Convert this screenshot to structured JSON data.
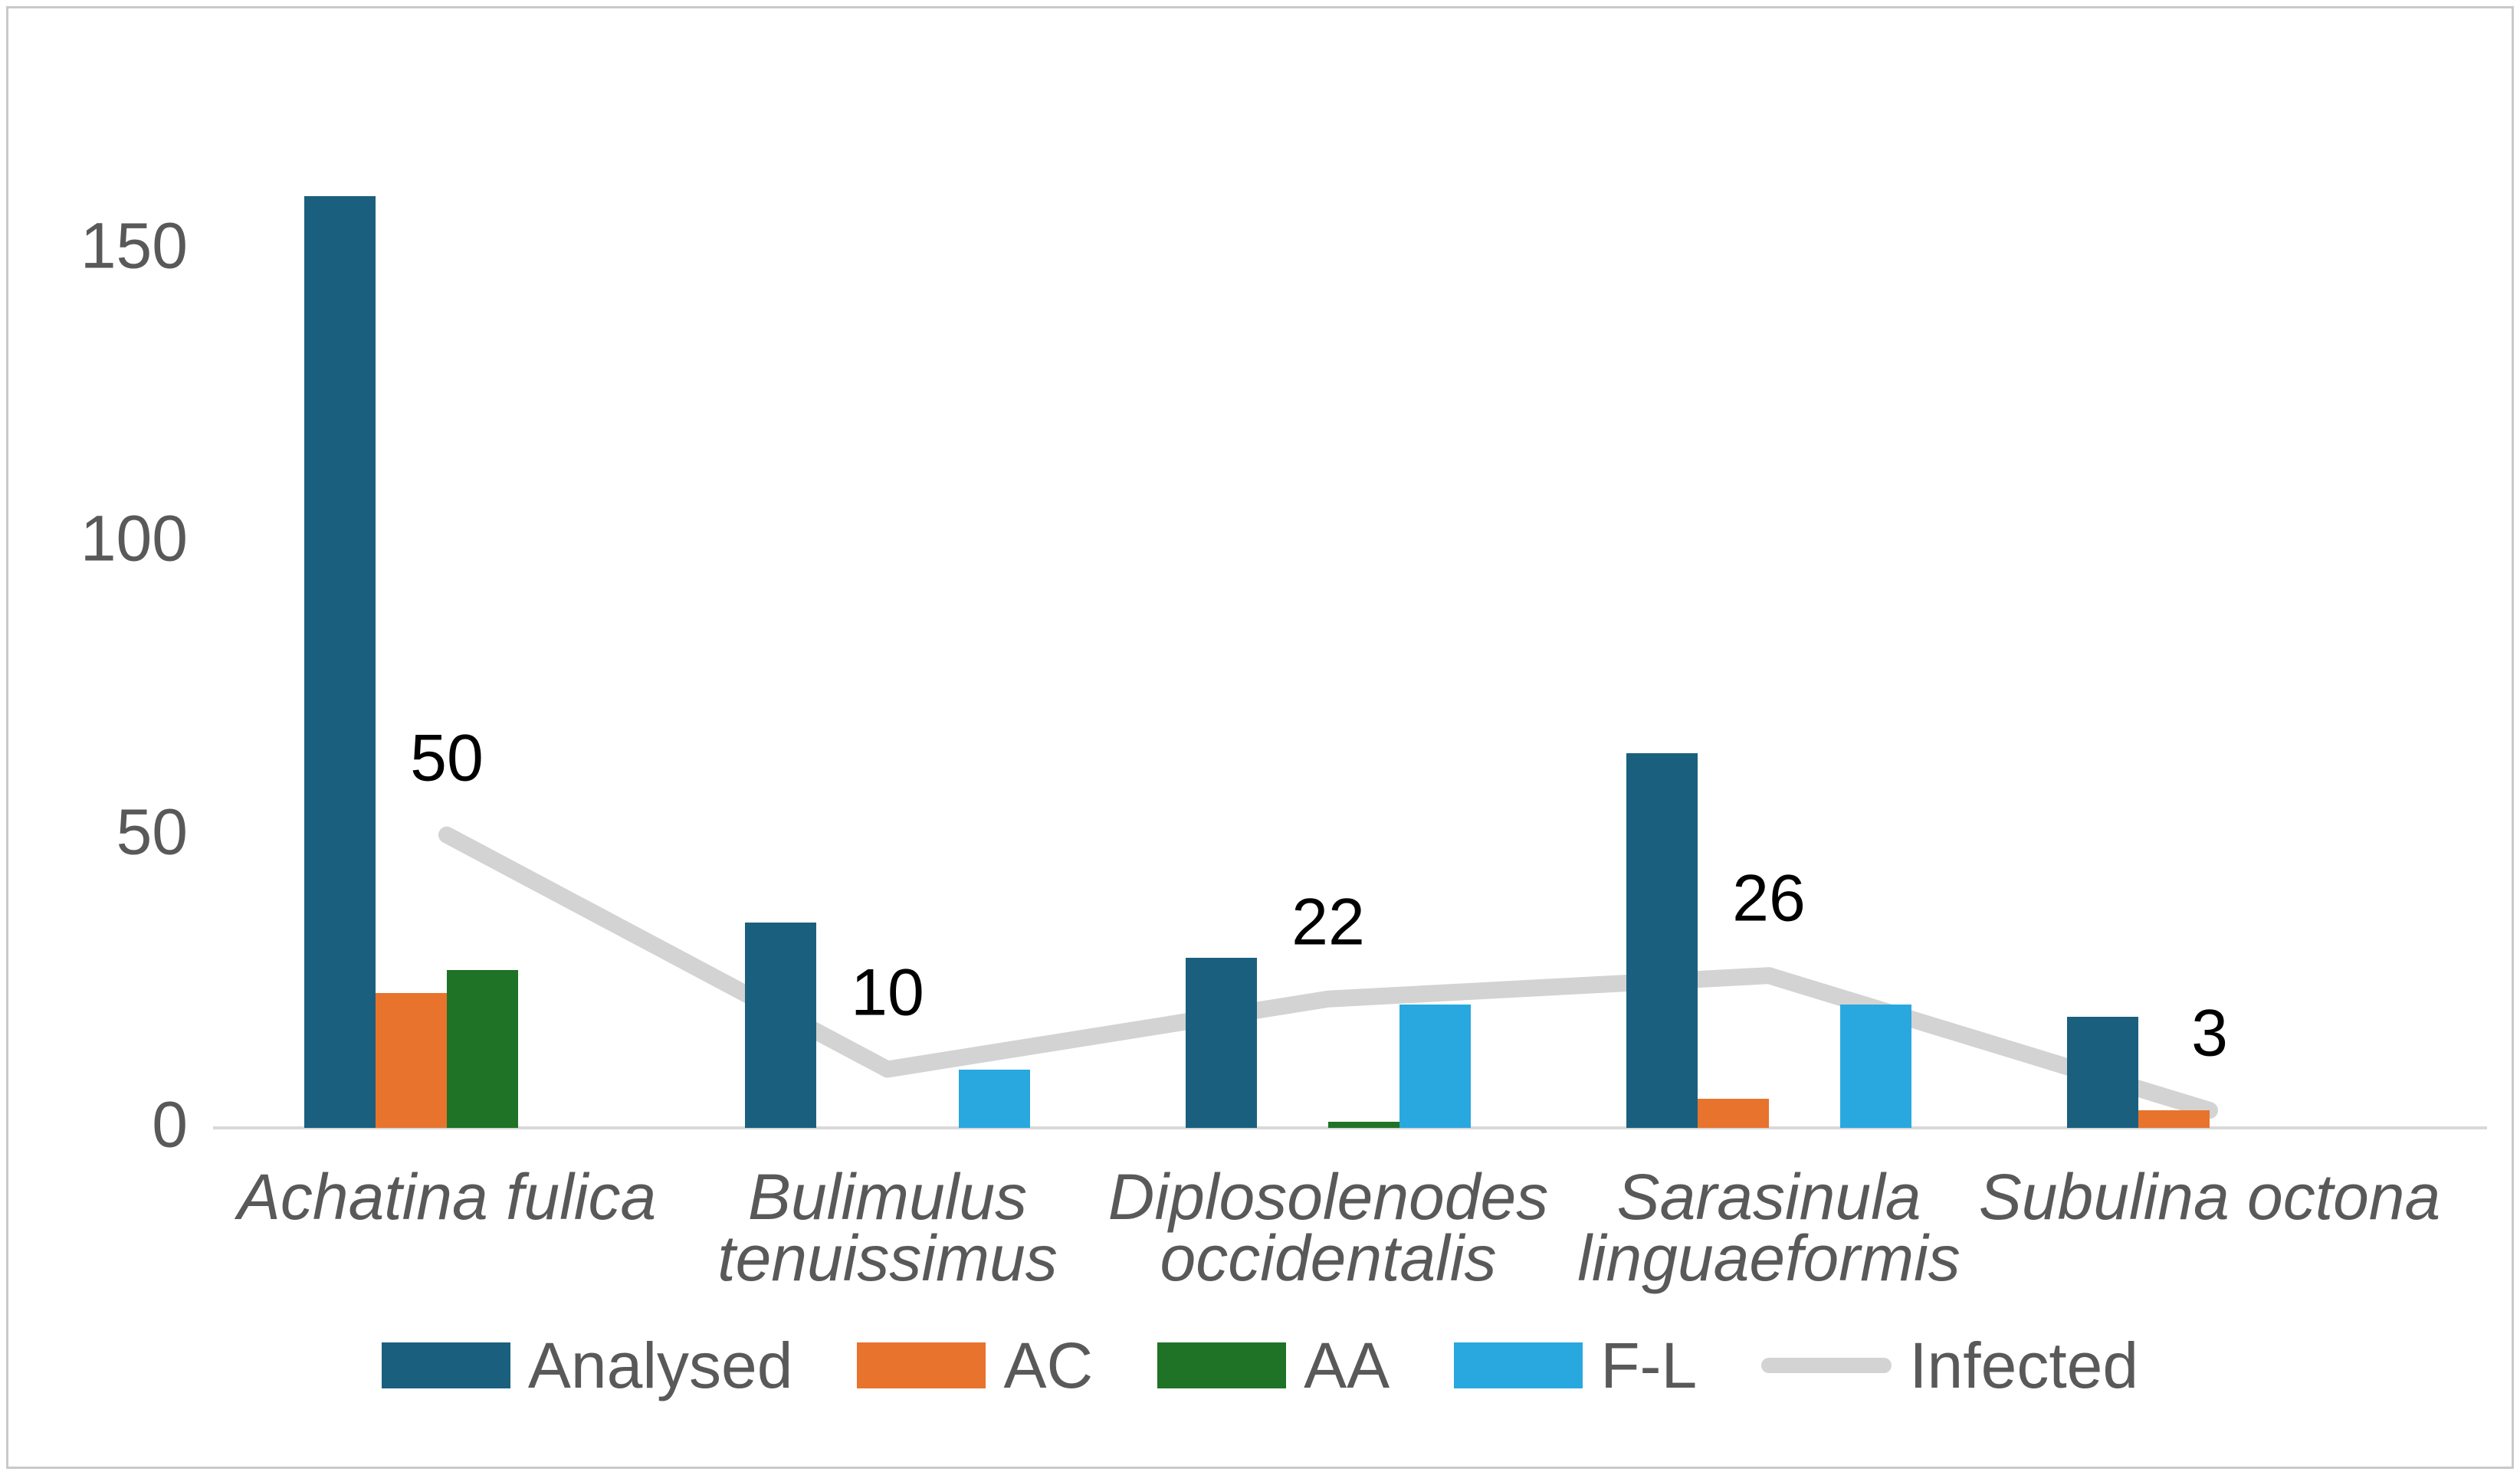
{
  "chart_data": {
    "type": "combo-bar-line",
    "title": "",
    "xlabel": "",
    "ylabel": "",
    "grid": false,
    "legend_position": "bottom",
    "ylim": [
      0,
      160
    ],
    "yticks": [
      "0",
      "50",
      "100",
      "150"
    ],
    "ytick_values": [
      0,
      50,
      100,
      150
    ],
    "categories": [
      "Achatina fulica",
      "Bulimulus tenuissimus",
      "Diplosolenodes occidentalis",
      "Sarasinula linguaeformis",
      "Subulina octona"
    ],
    "category_label_lines": [
      [
        "Achatina fulica"
      ],
      [
        "Bulimulus",
        "tenuissimus"
      ],
      [
        "Diplosolenodes",
        "occidentalis"
      ],
      [
        "Sarasinula",
        "linguaeformis"
      ],
      [
        "Subulina octona"
      ]
    ],
    "bar_series": [
      {
        "name": "Analysed",
        "color": "#1a607e",
        "values": [
          159,
          35,
          29,
          64,
          19
        ]
      },
      {
        "name": "AC",
        "color": "#e8732d",
        "values": [
          23,
          0,
          0,
          5,
          3
        ]
      },
      {
        "name": "AA",
        "color": "#1e7326",
        "values": [
          27,
          0,
          1,
          0,
          0
        ]
      },
      {
        "name": "F-L",
        "color": "#29a8df",
        "values": [
          0,
          10,
          21,
          21,
          0
        ]
      }
    ],
    "line_series": {
      "name": "Infected",
      "color": "#d3d3d3",
      "values": [
        50,
        10,
        22,
        26,
        3
      ],
      "data_labels": [
        "50",
        "10",
        "22",
        "26",
        "3"
      ]
    },
    "axis_text_color": "#595959",
    "axis_line_color": "#d9d9d9",
    "data_label_color": "#000000"
  }
}
